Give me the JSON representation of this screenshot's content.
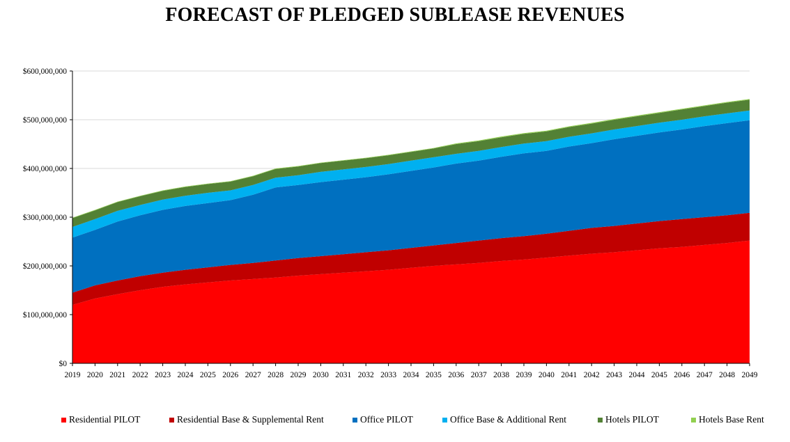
{
  "chart_data": {
    "type": "area",
    "stacked": true,
    "title": "FORECAST OF PLEDGED SUBLEASE REVENUES",
    "xlabel": "",
    "ylabel": "",
    "ylim": [
      0,
      600000000
    ],
    "yticks": [
      "$0",
      "$100,000,000",
      "$200,000,000",
      "$300,000,000",
      "$400,000,000",
      "$500,000,000",
      "$600,000,000"
    ],
    "yticks_values": [
      0,
      100000000,
      200000000,
      300000000,
      400000000,
      500000000,
      600000000
    ],
    "grid": true,
    "legend": "bottom",
    "categories": [
      "2019",
      "2020",
      "2021",
      "2022",
      "2023",
      "2024",
      "2025",
      "2026",
      "2027",
      "2028",
      "2029",
      "2030",
      "2031",
      "2032",
      "2033",
      "2034",
      "2035",
      "2036",
      "2037",
      "2038",
      "2039",
      "2040",
      "2041",
      "2042",
      "2043",
      "2044",
      "2045",
      "2046",
      "2047",
      "2048",
      "2049"
    ],
    "series": [
      {
        "name": "Residential PILOT",
        "color": "#ff0000",
        "values": [
          120000000,
          133000000,
          142000000,
          150000000,
          157000000,
          162000000,
          166000000,
          170000000,
          173000000,
          176000000,
          180000000,
          183000000,
          186000000,
          189000000,
          192000000,
          196000000,
          200000000,
          203000000,
          206000000,
          210000000,
          213000000,
          217000000,
          221000000,
          225000000,
          228000000,
          232000000,
          236000000,
          239000000,
          243000000,
          247000000,
          252000000
        ]
      },
      {
        "name": "Residential Base & Supplemental Rent",
        "color": "#c00000",
        "values": [
          25000000,
          27000000,
          28000000,
          29000000,
          29000000,
          30000000,
          31000000,
          32000000,
          33000000,
          35000000,
          36000000,
          37000000,
          38000000,
          39000000,
          40000000,
          41000000,
          42000000,
          44000000,
          46000000,
          47000000,
          48000000,
          49000000,
          51000000,
          53000000,
          54000000,
          55000000,
          56000000,
          57000000,
          57000000,
          57000000,
          57000000
        ]
      },
      {
        "name": "Office PILOT",
        "color": "#0070c0",
        "values": [
          113000000,
          114000000,
          121000000,
          125000000,
          129000000,
          131000000,
          132000000,
          133000000,
          140000000,
          150000000,
          150000000,
          152000000,
          153000000,
          154000000,
          156000000,
          158000000,
          160000000,
          163000000,
          164000000,
          167000000,
          170000000,
          170000000,
          173000000,
          174000000,
          178000000,
          180000000,
          182000000,
          184000000,
          187000000,
          189000000,
          190000000
        ]
      },
      {
        "name": "Office Base & Additional Rent",
        "color": "#00b0f0",
        "values": [
          22000000,
          22000000,
          22000000,
          21000000,
          21000000,
          21000000,
          21000000,
          20000000,
          20000000,
          20000000,
          20000000,
          21000000,
          21000000,
          21000000,
          21000000,
          21000000,
          21000000,
          20000000,
          20000000,
          20000000,
          20000000,
          20000000,
          20000000,
          20000000,
          20000000,
          20000000,
          20000000,
          20000000,
          20000000,
          20000000,
          20000000
        ]
      },
      {
        "name": "Hotels PILOT",
        "color": "#538135",
        "values": [
          18000000,
          18000000,
          18000000,
          18000000,
          18000000,
          18000000,
          18000000,
          18000000,
          18000000,
          18000000,
          18000000,
          18000000,
          18000000,
          18000000,
          18000000,
          18000000,
          18000000,
          20000000,
          20000000,
          20000000,
          20000000,
          20000000,
          20000000,
          20000000,
          20000000,
          20000000,
          20000000,
          21000000,
          21000000,
          22000000,
          22000000
        ]
      },
      {
        "name": "Hotels Base Rent",
        "color": "#92d050",
        "values": [
          1000000,
          1000000,
          1000000,
          1000000,
          1000000,
          1000000,
          1000000,
          1000000,
          1000000,
          1000000,
          1000000,
          1000000,
          1000000,
          1000000,
          1000000,
          1000000,
          1000000,
          1500000,
          1500000,
          1500000,
          1500000,
          1500000,
          1500000,
          1500000,
          1500000,
          1500000,
          1500000,
          1500000,
          1500000,
          1500000,
          1500000
        ]
      }
    ]
  }
}
